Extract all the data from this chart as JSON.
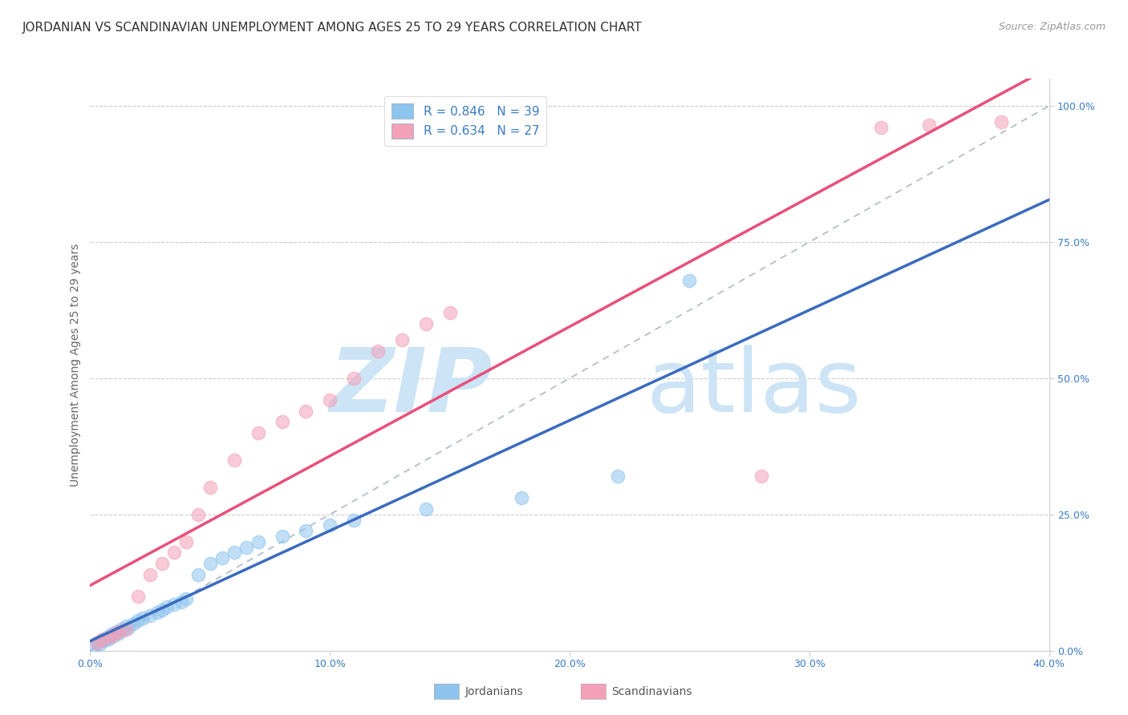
{
  "title": "JORDANIAN VS SCANDINAVIAN UNEMPLOYMENT AMONG AGES 25 TO 29 YEARS CORRELATION CHART",
  "source": "Source: ZipAtlas.com",
  "ylabel_left": "Unemployment Among Ages 25 to 29 years",
  "x_ticks": [
    0.0,
    10.0,
    20.0,
    30.0,
    40.0
  ],
  "x_tick_labels": [
    "0.0%",
    "10.0%",
    "20.0%",
    "30.0%",
    "40.0%"
  ],
  "y_ticks": [
    0.0,
    25.0,
    50.0,
    75.0,
    100.0
  ],
  "y_tick_labels": [
    "0.0%",
    "25.0%",
    "50.0%",
    "75.0%",
    "100.0%"
  ],
  "xlim": [
    0.0,
    40.0
  ],
  "ylim": [
    0.0,
    105.0
  ],
  "jordan_color": "#8dc4ee",
  "scand_color": "#f4a0b8",
  "jordan_line_color": "#3a6bbf",
  "scand_line_color": "#e8507a",
  "ref_line_color": "#b0b8c8",
  "jordan_R": 0.846,
  "jordan_N": 39,
  "scand_R": 0.634,
  "scand_N": 27,
  "jordan_points_x": [
    0.2,
    0.3,
    0.4,
    0.5,
    0.6,
    0.7,
    0.8,
    0.9,
    1.0,
    1.1,
    1.2,
    1.3,
    1.4,
    1.5,
    1.6,
    1.8,
    2.0,
    2.2,
    2.5,
    2.8,
    3.0,
    3.2,
    3.5,
    3.8,
    4.0,
    4.5,
    5.0,
    5.5,
    6.0,
    6.5,
    7.0,
    8.0,
    9.0,
    10.0,
    11.0,
    14.0,
    18.0,
    22.0,
    25.0
  ],
  "jordan_points_y": [
    1.0,
    1.5,
    1.2,
    2.0,
    1.8,
    2.5,
    2.2,
    3.0,
    2.8,
    3.5,
    3.2,
    4.0,
    3.8,
    4.5,
    4.2,
    5.0,
    5.5,
    6.0,
    6.5,
    7.0,
    7.5,
    8.0,
    8.5,
    9.0,
    9.5,
    14.0,
    16.0,
    17.0,
    18.0,
    19.0,
    20.0,
    21.0,
    22.0,
    23.0,
    24.0,
    26.0,
    28.0,
    32.0,
    68.0
  ],
  "scand_points_x": [
    0.3,
    0.5,
    0.8,
    1.0,
    1.2,
    1.5,
    2.0,
    2.5,
    3.0,
    3.5,
    4.0,
    4.5,
    5.0,
    6.0,
    7.0,
    8.0,
    9.0,
    10.0,
    11.0,
    12.0,
    13.0,
    14.0,
    15.0,
    28.0,
    33.0,
    35.0,
    38.0
  ],
  "scand_points_y": [
    1.5,
    2.0,
    2.5,
    3.0,
    3.5,
    4.0,
    10.0,
    14.0,
    16.0,
    18.0,
    20.0,
    25.0,
    30.0,
    35.0,
    40.0,
    42.0,
    44.0,
    46.0,
    50.0,
    55.0,
    57.0,
    60.0,
    62.0,
    32.0,
    96.0,
    96.5,
    97.0
  ],
  "watermark_text": "ZIPatlas",
  "watermark_color": "#cce4f5",
  "title_fontsize": 11,
  "axis_label_fontsize": 10,
  "tick_fontsize": 9,
  "legend_fontsize": 11,
  "source_fontsize": 9,
  "background_color": "#ffffff",
  "grid_color": "#cccccc",
  "grid_style": "--"
}
